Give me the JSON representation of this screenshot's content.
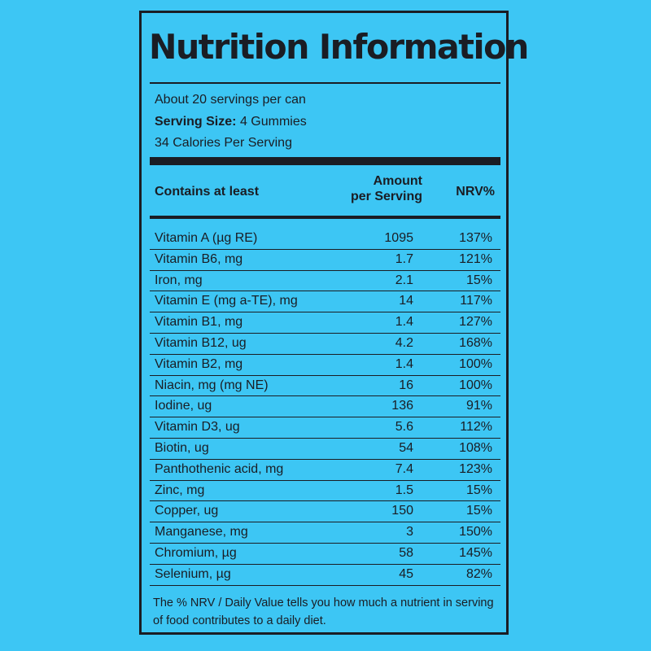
{
  "label": {
    "title": "Nutrition Information",
    "servings_per_container": "About 20 servings per can",
    "serving_size_label": "Serving Size:",
    "serving_size_value": "4 Gummies",
    "calories": "34 Calories Per Serving",
    "headers": {
      "nutrient": "Contains at least",
      "amount_line1": "Amount",
      "amount_line2": "per Serving",
      "nrv": "NRV%"
    },
    "rows": [
      {
        "name": "Vitamin A  (µg RE)",
        "amount": "1095",
        "nrv": "137%"
      },
      {
        "name": "Vitamin B6, mg",
        "amount": "1.7",
        "nrv": "121%"
      },
      {
        "name": "Iron, mg",
        "amount": "2.1",
        "nrv": "15%"
      },
      {
        "name": "Vitamin E (mg a-TE), mg",
        "amount": "14",
        "nrv": "117%"
      },
      {
        "name": "Vitamin B1, mg",
        "amount": "1.4",
        "nrv": "127%"
      },
      {
        "name": "Vitamin B12, ug",
        "amount": "4.2",
        "nrv": "168%"
      },
      {
        "name": "Vitamin B2, mg",
        "amount": "1.4",
        "nrv": "100%"
      },
      {
        "name": "Niacin, mg (mg NE)",
        "amount": "16",
        "nrv": "100%"
      },
      {
        "name": "Iodine, ug",
        "amount": "136",
        "nrv": "91%"
      },
      {
        "name": "Vitamin D3, ug",
        "amount": "5.6",
        "nrv": "112%"
      },
      {
        "name": "Biotin, ug",
        "amount": "54",
        "nrv": "108%"
      },
      {
        "name": "Panthothenic acid, mg",
        "amount": "7.4",
        "nrv": "123%"
      },
      {
        "name": "Zinc, mg",
        "amount": "1.5",
        "nrv": "15%"
      },
      {
        "name": "Copper, ug",
        "amount": "150",
        "nrv": "15%"
      },
      {
        "name": "Manganese, mg",
        "amount": "3",
        "nrv": "150%"
      },
      {
        "name": "Chromium, µg",
        "amount": "58",
        "nrv": "145%"
      },
      {
        "name": "Selenium, µg",
        "amount": "45",
        "nrv": "82%"
      }
    ],
    "footnote": "The % NRV / Daily Value tells you how much a nutrient in  serving of food contributes to a daily diet."
  },
  "colors": {
    "background": "#3dc6f4",
    "ink": "#1a1d24"
  }
}
